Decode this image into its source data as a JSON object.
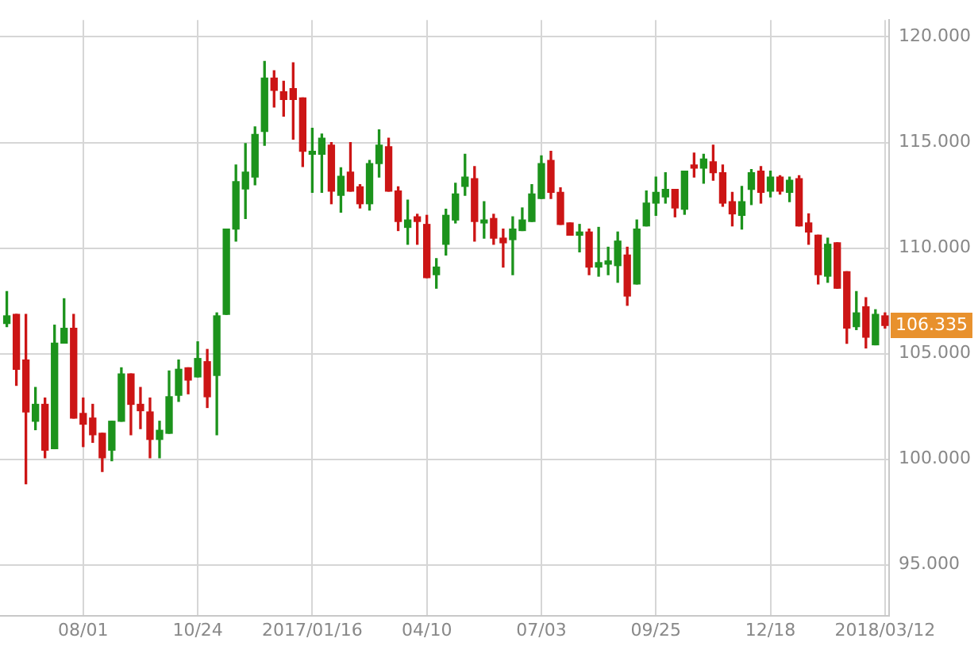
{
  "chart_data": {
    "type": "candlestick",
    "x": [
      "2016-06-06",
      "2016-06-13",
      "2016-06-20",
      "2016-06-27",
      "2016-07-04",
      "2016-07-11",
      "2016-07-18",
      "2016-07-25",
      "2016-08-01",
      "2016-08-08",
      "2016-08-15",
      "2016-08-22",
      "2016-08-29",
      "2016-09-05",
      "2016-09-12",
      "2016-09-19",
      "2016-09-26",
      "2016-10-03",
      "2016-10-10",
      "2016-10-17",
      "2016-10-24",
      "2016-10-31",
      "2016-11-07",
      "2016-11-14",
      "2016-11-21",
      "2016-11-28",
      "2016-12-05",
      "2016-12-12",
      "2016-12-19",
      "2016-12-26",
      "2017-01-02",
      "2017-01-09",
      "2017-01-16",
      "2017-01-23",
      "2017-01-30",
      "2017-02-06",
      "2017-02-13",
      "2017-02-20",
      "2017-02-27",
      "2017-03-06",
      "2017-03-13",
      "2017-03-20",
      "2017-03-27",
      "2017-04-03",
      "2017-04-10",
      "2017-04-17",
      "2017-04-24",
      "2017-05-01",
      "2017-05-08",
      "2017-05-15",
      "2017-05-22",
      "2017-05-29",
      "2017-06-05",
      "2017-06-12",
      "2017-06-19",
      "2017-06-26",
      "2017-07-03",
      "2017-07-10",
      "2017-07-17",
      "2017-07-24",
      "2017-07-31",
      "2017-08-07",
      "2017-08-14",
      "2017-08-21",
      "2017-08-28",
      "2017-09-04",
      "2017-09-11",
      "2017-09-18",
      "2017-09-25",
      "2017-10-02",
      "2017-10-09",
      "2017-10-16",
      "2017-10-23",
      "2017-10-30",
      "2017-11-06",
      "2017-11-13",
      "2017-11-20",
      "2017-11-27",
      "2017-12-04",
      "2017-12-11",
      "2017-12-18",
      "2017-12-25",
      "2018-01-01",
      "2018-01-08",
      "2018-01-15",
      "2018-01-22",
      "2018-01-29",
      "2018-02-05",
      "2018-02-12",
      "2018-02-19",
      "2018-02-26",
      "2018-03-05",
      "2018-03-12"
    ],
    "ohlc": [
      [
        106.43,
        107.94,
        106.28,
        106.79
      ],
      [
        106.86,
        106.86,
        103.5,
        104.26
      ],
      [
        104.7,
        106.86,
        98.84,
        102.24
      ],
      [
        101.8,
        103.4,
        101.4,
        102.6
      ],
      [
        102.6,
        102.9,
        100.07,
        100.43
      ],
      [
        100.5,
        106.35,
        100.5,
        105.5
      ],
      [
        105.5,
        107.6,
        105.5,
        106.2
      ],
      [
        106.2,
        106.86,
        101.95,
        101.95
      ],
      [
        102.17,
        102.9,
        100.6,
        101.66
      ],
      [
        101.95,
        102.6,
        100.8,
        101.16
      ],
      [
        101.23,
        101.23,
        99.42,
        100.07
      ],
      [
        100.43,
        101.8,
        99.93,
        101.8
      ],
      [
        101.8,
        104.33,
        101.8,
        104.04
      ],
      [
        104.04,
        104.04,
        101.16,
        102.6
      ],
      [
        102.6,
        103.4,
        101.45,
        102.3
      ],
      [
        102.24,
        102.9,
        100.07,
        100.94
      ],
      [
        100.94,
        101.8,
        100.07,
        101.37
      ],
      [
        101.23,
        104.18,
        101.23,
        102.96
      ],
      [
        103.03,
        104.7,
        102.74,
        104.26
      ],
      [
        104.33,
        104.33,
        103.1,
        103.75
      ],
      [
        103.9,
        105.56,
        103.9,
        104.77
      ],
      [
        104.62,
        105.2,
        102.45,
        102.96
      ],
      [
        103.97,
        106.93,
        101.16,
        106.79
      ],
      [
        106.86,
        110.9,
        106.86,
        110.9
      ],
      [
        110.9,
        113.93,
        110.33,
        113.14
      ],
      [
        112.8,
        114.95,
        111.4,
        113.6
      ],
      [
        113.36,
        115.74,
        113.0,
        115.38
      ],
      [
        115.52,
        118.84,
        114.87,
        118.05
      ],
      [
        118.05,
        118.4,
        116.68,
        117.47
      ],
      [
        117.4,
        117.9,
        116.25,
        117.04
      ],
      [
        117.55,
        118.77,
        115.16,
        117.04
      ],
      [
        117.11,
        117.11,
        113.86,
        114.58
      ],
      [
        114.44,
        115.67,
        112.64,
        114.58
      ],
      [
        114.44,
        115.4,
        112.64,
        115.2
      ],
      [
        114.87,
        115.0,
        112.1,
        112.7
      ],
      [
        112.5,
        113.8,
        111.7,
        113.4
      ],
      [
        113.6,
        115.0,
        112.7,
        112.7
      ],
      [
        112.9,
        113.0,
        111.9,
        112.1
      ],
      [
        112.1,
        114.15,
        111.8,
        114.0
      ],
      [
        114.0,
        115.6,
        113.36,
        114.87
      ],
      [
        114.8,
        115.2,
        112.7,
        112.7
      ],
      [
        112.7,
        112.9,
        110.83,
        111.26
      ],
      [
        110.98,
        112.27,
        110.18,
        111.33
      ],
      [
        111.48,
        111.6,
        110.18,
        111.26
      ],
      [
        111.12,
        111.55,
        108.6,
        108.6
      ],
      [
        108.74,
        109.5,
        108.1,
        109.1
      ],
      [
        110.18,
        111.84,
        109.67,
        111.55
      ],
      [
        111.33,
        113.07,
        111.19,
        112.56
      ],
      [
        112.92,
        114.44,
        112.5,
        113.36
      ],
      [
        113.29,
        113.86,
        110.33,
        111.26
      ],
      [
        111.19,
        112.2,
        110.47,
        111.33
      ],
      [
        111.4,
        111.6,
        110.18,
        110.47
      ],
      [
        110.47,
        110.9,
        109.1,
        110.25
      ],
      [
        110.4,
        111.48,
        108.74,
        110.9
      ],
      [
        110.83,
        111.9,
        110.83,
        111.33
      ],
      [
        111.26,
        113.0,
        111.26,
        112.56
      ],
      [
        112.35,
        114.37,
        112.35,
        114.0
      ],
      [
        114.15,
        114.58,
        112.35,
        112.64
      ],
      [
        112.64,
        112.85,
        111.12,
        111.12
      ],
      [
        111.19,
        111.19,
        110.61,
        110.61
      ],
      [
        110.61,
        111.12,
        109.82,
        110.76
      ],
      [
        110.76,
        110.9,
        108.74,
        109.1
      ],
      [
        109.1,
        110.98,
        108.67,
        109.31
      ],
      [
        109.24,
        110.04,
        108.74,
        109.39
      ],
      [
        109.17,
        110.76,
        108.38,
        110.33
      ],
      [
        109.67,
        110.04,
        107.29,
        107.73
      ],
      [
        108.3,
        111.33,
        108.3,
        110.9
      ],
      [
        111.05,
        112.7,
        111.05,
        112.13
      ],
      [
        112.13,
        113.36,
        111.55,
        112.64
      ],
      [
        112.42,
        113.57,
        112.13,
        112.78
      ],
      [
        112.78,
        112.78,
        111.48,
        111.9
      ],
      [
        111.84,
        113.64,
        111.6,
        113.64
      ],
      [
        113.93,
        114.5,
        113.36,
        113.79
      ],
      [
        113.79,
        114.44,
        113.07,
        114.22
      ],
      [
        114.08,
        114.87,
        113.21,
        113.57
      ],
      [
        113.57,
        113.93,
        111.98,
        112.13
      ],
      [
        112.2,
        112.64,
        111.05,
        111.62
      ],
      [
        111.55,
        112.92,
        110.9,
        112.2
      ],
      [
        112.78,
        113.72,
        112.06,
        113.57
      ],
      [
        113.64,
        113.86,
        112.13,
        112.64
      ],
      [
        112.7,
        113.64,
        112.42,
        113.36
      ],
      [
        113.36,
        113.43,
        112.56,
        112.7
      ],
      [
        112.64,
        113.36,
        112.2,
        113.21
      ],
      [
        113.29,
        113.43,
        111.05,
        111.05
      ],
      [
        111.19,
        111.62,
        110.18,
        110.76
      ],
      [
        110.61,
        110.61,
        108.3,
        108.74
      ],
      [
        108.67,
        110.47,
        108.38,
        110.18
      ],
      [
        110.25,
        110.25,
        108.1,
        108.1
      ],
      [
        108.88,
        108.88,
        105.49,
        106.21
      ],
      [
        106.28,
        107.94,
        106.14,
        106.93
      ],
      [
        107.22,
        107.65,
        105.27,
        105.78
      ],
      [
        105.42,
        107.08,
        105.42,
        106.86
      ],
      [
        106.79,
        106.93,
        106.21,
        106.335
      ]
    ],
    "colors": [
      "#1c931c",
      "#cc1515",
      "#cc1515",
      "#1c931c",
      "#cc1515",
      "#1c931c",
      "#1c931c",
      "#cc1515",
      "#cc1515",
      "#cc1515",
      "#cc1515",
      "#1c931c",
      "#1c931c",
      "#cc1515",
      "#cc1515",
      "#cc1515",
      "#1c931c",
      "#1c931c",
      "#1c931c",
      "#cc1515",
      "#1c931c",
      "#cc1515",
      "#1c931c",
      "#1c931c",
      "#1c931c",
      "#1c931c",
      "#1c931c",
      "#1c931c",
      "#cc1515",
      "#cc1515",
      "#cc1515",
      "#cc1515",
      "#1c931c",
      "#1c931c",
      "#cc1515",
      "#1c931c",
      "#cc1515",
      "#cc1515",
      "#1c931c",
      "#1c931c",
      "#cc1515",
      "#cc1515",
      "#1c931c",
      "#cc1515",
      "#cc1515",
      "#1c931c",
      "#1c931c",
      "#1c931c",
      "#1c931c",
      "#cc1515",
      "#1c931c",
      "#cc1515",
      "#cc1515",
      "#1c931c",
      "#1c931c",
      "#1c931c",
      "#1c931c",
      "#cc1515",
      "#cc1515",
      "#cc1515",
      "#1c931c",
      "#cc1515",
      "#1c931c",
      "#1c931c",
      "#1c931c",
      "#cc1515",
      "#1c931c",
      "#1c931c",
      "#1c931c",
      "#1c931c",
      "#cc1515",
      "#1c931c",
      "#cc1515",
      "#1c931c",
      "#cc1515",
      "#cc1515",
      "#cc1515",
      "#1c931c",
      "#1c931c",
      "#cc1515",
      "#1c931c",
      "#cc1515",
      "#1c931c",
      "#cc1515",
      "#cc1515",
      "#cc1515",
      "#1c931c",
      "#cc1515",
      "#cc1515",
      "#1c931c",
      "#cc1515",
      "#1c931c",
      "#cc1515"
    ],
    "xlim": [
      "2016-06-01",
      "2018-03-15"
    ],
    "xticks": [
      {
        "value": "2016-08-01",
        "label": "08/01"
      },
      {
        "value": "2016-10-24",
        "label": "10/24"
      },
      {
        "value": "2017-01-16",
        "label": "2017/01/16"
      },
      {
        "value": "2017-04-10",
        "label": "04/10"
      },
      {
        "value": "2017-07-03",
        "label": "07/03"
      },
      {
        "value": "2017-09-25",
        "label": "09/25"
      },
      {
        "value": "2017-12-18",
        "label": "12/18"
      },
      {
        "value": "2018-03-12",
        "label": "2018/03/12"
      }
    ],
    "ylim": [
      92.6,
      120.8
    ],
    "yticks": [
      {
        "value": 95,
        "label": "95.000"
      },
      {
        "value": 100,
        "label": "100.000"
      },
      {
        "value": 105,
        "label": "105.000"
      },
      {
        "value": 110,
        "label": "110.000"
      },
      {
        "value": 115,
        "label": "115.000"
      },
      {
        "value": 120,
        "label": "120.000"
      }
    ],
    "grid": true,
    "annotations": [
      "106.335"
    ]
  }
}
